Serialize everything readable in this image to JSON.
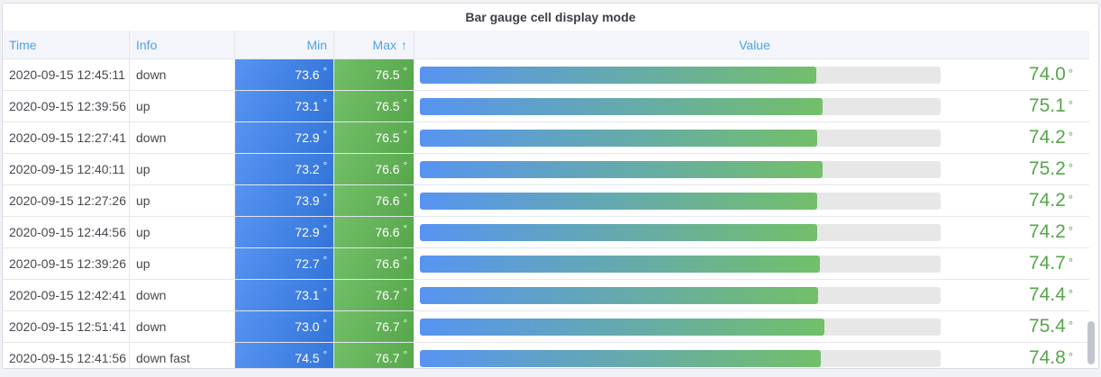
{
  "panel": {
    "title": "Bar gauge cell display mode"
  },
  "table": {
    "columns": [
      {
        "id": "time",
        "label": "Time",
        "align": "left"
      },
      {
        "id": "info",
        "label": "Info",
        "align": "left"
      },
      {
        "id": "min",
        "label": "Min",
        "align": "right"
      },
      {
        "id": "max",
        "label": "Max",
        "align": "right",
        "sorted": "ascending"
      },
      {
        "id": "value",
        "label": "Value",
        "align": "center"
      }
    ],
    "sort_icon": "↑",
    "unit": "°",
    "rows": [
      {
        "time": "2020-09-15 12:45:11",
        "info": "down",
        "min": "73.6",
        "max": "76.5",
        "value": "74.0",
        "bar_pct": 76.1
      },
      {
        "time": "2020-09-15 12:39:56",
        "info": "up",
        "min": "73.1",
        "max": "76.5",
        "value": "75.1",
        "bar_pct": 77.3
      },
      {
        "time": "2020-09-15 12:27:41",
        "info": "down",
        "min": "72.9",
        "max": "76.5",
        "value": "74.2",
        "bar_pct": 76.3
      },
      {
        "time": "2020-09-15 12:40:11",
        "info": "up",
        "min": "73.2",
        "max": "76.6",
        "value": "75.2",
        "bar_pct": 77.4
      },
      {
        "time": "2020-09-15 12:27:26",
        "info": "up",
        "min": "73.9",
        "max": "76.6",
        "value": "74.2",
        "bar_pct": 76.3
      },
      {
        "time": "2020-09-15 12:44:56",
        "info": "up",
        "min": "72.9",
        "max": "76.6",
        "value": "74.2",
        "bar_pct": 76.3
      },
      {
        "time": "2020-09-15 12:39:26",
        "info": "up",
        "min": "72.7",
        "max": "76.6",
        "value": "74.7",
        "bar_pct": 76.8
      },
      {
        "time": "2020-09-15 12:42:41",
        "info": "down",
        "min": "73.1",
        "max": "76.7",
        "value": "74.4",
        "bar_pct": 76.5
      },
      {
        "time": "2020-09-15 12:51:41",
        "info": "down",
        "min": "73.0",
        "max": "76.7",
        "value": "75.4",
        "bar_pct": 77.6
      },
      {
        "time": "2020-09-15 12:41:56",
        "info": "down fast",
        "min": "74.5",
        "max": "76.7",
        "value": "74.8",
        "bar_pct": 77.0
      }
    ]
  },
  "colors": {
    "page_bg": "#f0f2f5",
    "panel_bg": "#ffffff",
    "panel_border": "#d9dce2",
    "title_text": "#3a3e44",
    "header_bg": "#f4f5fa",
    "header_text": "#4da3e8",
    "row_border": "#e4e7ed",
    "body_text": "#45494f",
    "cell_text": "#ffffff",
    "cell_blue_start": "#5794f2",
    "cell_blue_end": "#3274d9",
    "cell_green_start": "#73bf69",
    "cell_green_end": "#56a64b",
    "gauge_blue": "#5794f2",
    "gauge_green": "#73bf69",
    "gauge_track": "#e7e7e7",
    "value_text": "#56a64b",
    "scroll_thumb": "#c1c5cd"
  }
}
